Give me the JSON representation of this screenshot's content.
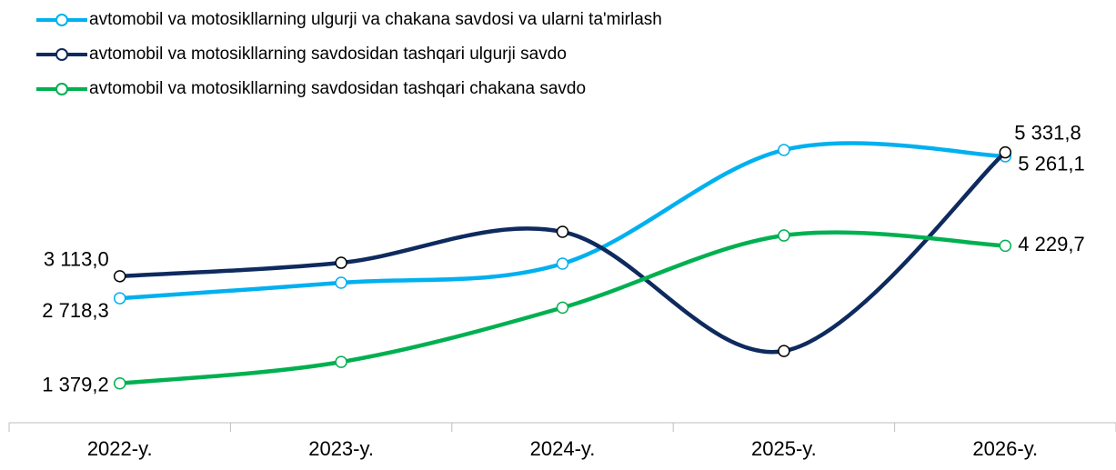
{
  "chart_data": {
    "type": "line",
    "categories": [
      "2022-y.",
      "2023-y.",
      "2024-y.",
      "2025-y.",
      "2026-y."
    ],
    "series": [
      {
        "name": "avtomobil va motosikllarning ulgurji va chakana savdosi va ularni ta'mirlash",
        "color": "#00b0f0",
        "label_color": "#2e75b6",
        "values": [
          2718.3,
          2996,
          3338,
          5375,
          5261.1
        ],
        "value_labels": [
          "2 718,3",
          null,
          null,
          null,
          "5 261,1"
        ]
      },
      {
        "name": "avtomobil va motosikllarning savdosidan tashqari ulgurji savdo",
        "color": "#0e2a5e",
        "label_color": "#0e2a5e",
        "values": [
          3113.0,
          3354,
          3908,
          1773,
          5331.8
        ],
        "value_labels": [
          "3 113,0",
          null,
          null,
          null,
          "5 331,8"
        ]
      },
      {
        "name": "avtomobil va motosikllarning savdosidan tashqari chakana savdo",
        "color": "#00b050",
        "label_color": "#00b050",
        "axis": "y2",
        "values": [
          1379.2,
          1824,
          2949,
          4443,
          4229.7
        ],
        "value_labels": [
          "1 379,2",
          null,
          null,
          null,
          "4 229,7"
        ]
      }
    ],
    "ylim": [
      0,
      6400
    ],
    "y2lim": [
      0,
      7400
    ],
    "grid": false,
    "legend": "top-left"
  }
}
